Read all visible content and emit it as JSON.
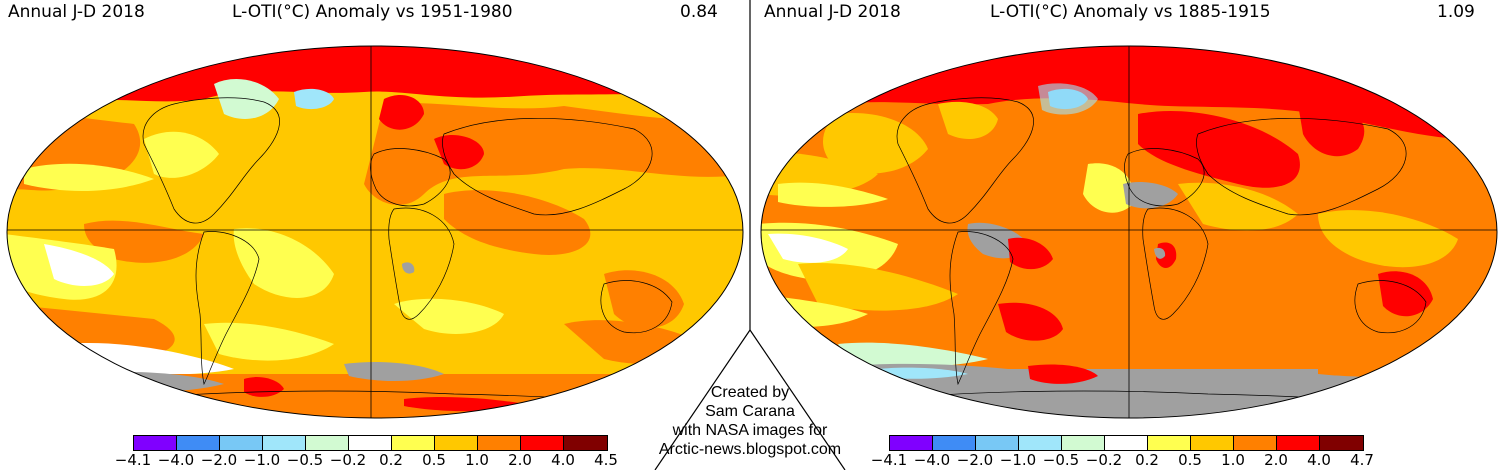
{
  "colors": {
    "scale": [
      "#8000ff",
      "#3f8cf5",
      "#78c8f5",
      "#a0e6fa",
      "#d2fad2",
      "#ffffff",
      "#ffff50",
      "#ffc800",
      "#ff8000",
      "#ff0000",
      "#800000"
    ],
    "no_data": "#a0a0a0"
  },
  "left_map": {
    "label": "Annual J-D 2018",
    "title": "L-OTI(°C) Anomaly vs 1951-1980",
    "global_mean": "0.84",
    "legend_ticks": [
      "−4.1",
      "−4.0",
      "−2.0",
      "−1.0",
      "−0.5",
      "−0.2",
      "0.2",
      "0.5",
      "1.0",
      "2.0",
      "4.0",
      "4.5"
    ]
  },
  "right_map": {
    "label": "Annual J-D 2018",
    "title": "L-OTI(°C) Anomaly vs 1885-1915",
    "global_mean": "1.09",
    "legend_ticks": [
      "−4.1",
      "−4.0",
      "−2.0",
      "−1.0",
      "−0.5",
      "−0.2",
      "0.2",
      "0.5",
      "1.0",
      "2.0",
      "4.0",
      "4.7"
    ]
  },
  "credit": {
    "line1": "Created by",
    "line2": "Sam Carana",
    "line3": "with NASA images for",
    "line4": "Arctic-news.blogspot.com"
  }
}
